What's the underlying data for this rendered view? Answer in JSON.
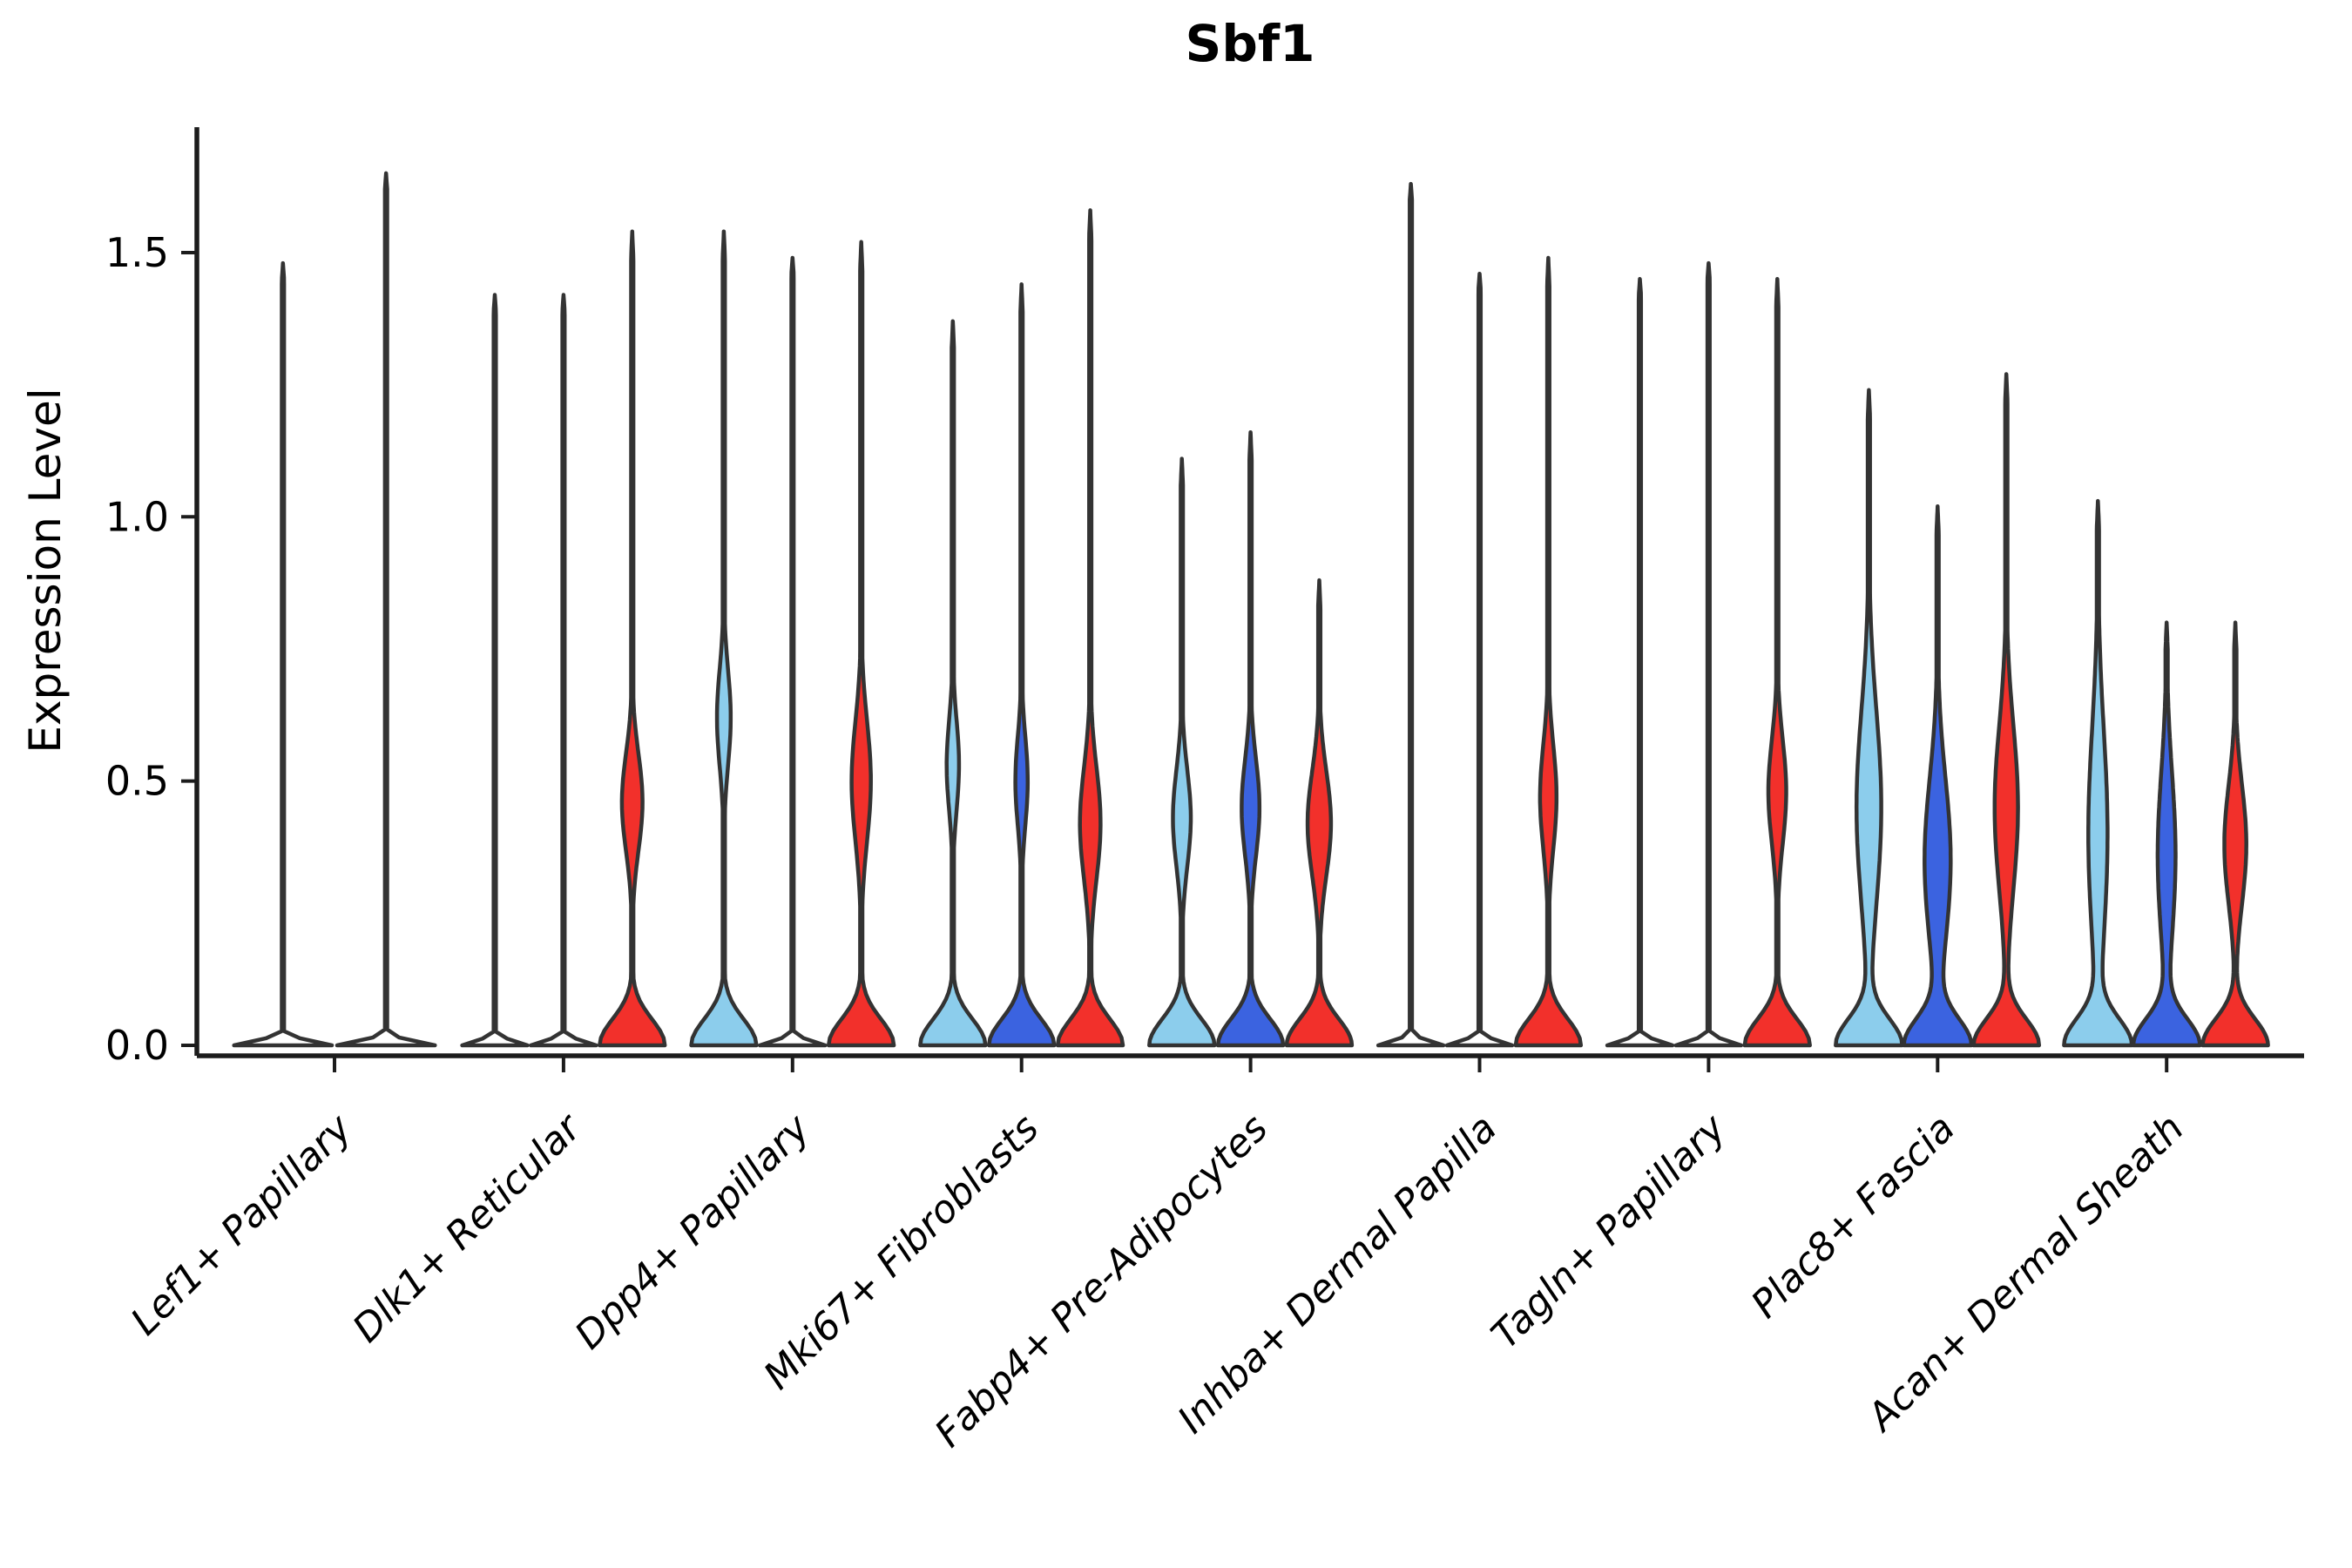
{
  "page": {
    "background": "#ffffff"
  },
  "chart_data": {
    "type": "violin",
    "title": "Sbf1",
    "ylabel": "Expression Level",
    "xlabel": "",
    "ylim": [
      -0.02,
      1.74
    ],
    "yticks": [
      0.0,
      0.5,
      1.0,
      1.5
    ],
    "grid": false,
    "legend": "none",
    "split_colors": {
      "light_blue": "#8CCDEC",
      "dark_blue": "#3B63E0",
      "red": "#F2302B"
    },
    "outline_color": "#333333",
    "axis_color": "#1c1c1c",
    "categories": [
      "Lef1+ Papillary",
      "Dlk1+ Reticular",
      "Dpp4+ Papillary",
      "Mki67+ Fibroblasts",
      "Fabp4+ Pre-Adipocytes",
      "Inhba+ Dermal Papilla",
      "Tagln+ Papillary",
      "Plac8+ Fascia",
      "Acan+ Dermal Sheath"
    ],
    "groups": [
      {
        "name": "Lef1+ Papillary",
        "violins": [
          {
            "split": null,
            "line_only": true,
            "max": 1.48
          },
          {
            "split": null,
            "line_only": true,
            "max": 1.65
          }
        ]
      },
      {
        "name": "Dlk1+ Reticular",
        "violins": [
          {
            "split": "light_blue",
            "line_only": true,
            "max": 1.42
          },
          {
            "split": "dark_blue",
            "line_only": true,
            "max": 1.42
          },
          {
            "split": "red",
            "line_only": false,
            "max": 1.54,
            "bulge": {
              "center": 0.46,
              "sigma": 0.13,
              "width": 0.3
            }
          }
        ]
      },
      {
        "name": "Dpp4+ Papillary",
        "violins": [
          {
            "split": "light_blue",
            "line_only": false,
            "max": 1.54,
            "bulge": {
              "center": 0.62,
              "sigma": 0.13,
              "width": 0.2
            }
          },
          {
            "split": "dark_blue",
            "line_only": true,
            "max": 1.49
          },
          {
            "split": "red",
            "line_only": false,
            "max": 1.52,
            "bulge": {
              "center": 0.5,
              "sigma": 0.16,
              "width": 0.28
            }
          }
        ]
      },
      {
        "name": "Mki67+ Fibroblasts",
        "violins": [
          {
            "split": "light_blue",
            "line_only": false,
            "max": 1.37,
            "bulge": {
              "center": 0.53,
              "sigma": 0.12,
              "width": 0.18
            }
          },
          {
            "split": "dark_blue",
            "line_only": false,
            "max": 1.44,
            "bulge": {
              "center": 0.5,
              "sigma": 0.12,
              "width": 0.18
            }
          },
          {
            "split": "red",
            "line_only": false,
            "max": 1.58,
            "bulge": {
              "center": 0.42,
              "sigma": 0.15,
              "width": 0.3
            }
          }
        ]
      },
      {
        "name": "Fabp4+ Pre-Adipocytes",
        "violins": [
          {
            "split": "light_blue",
            "line_only": false,
            "max": 1.11,
            "bulge": {
              "center": 0.43,
              "sigma": 0.13,
              "width": 0.26
            }
          },
          {
            "split": "dark_blue",
            "line_only": false,
            "max": 1.16,
            "bulge": {
              "center": 0.45,
              "sigma": 0.13,
              "width": 0.26
            }
          },
          {
            "split": "red",
            "line_only": false,
            "max": 0.88,
            "bulge": {
              "center": 0.42,
              "sigma": 0.14,
              "width": 0.34
            }
          }
        ]
      },
      {
        "name": "Inhba+ Dermal Papilla",
        "violins": [
          {
            "split": "light_blue",
            "line_only": true,
            "max": 1.63
          },
          {
            "split": "dark_blue",
            "line_only": true,
            "max": 1.46
          },
          {
            "split": "red",
            "line_only": false,
            "max": 1.49,
            "bulge": {
              "center": 0.47,
              "sigma": 0.14,
              "width": 0.24
            }
          }
        ]
      },
      {
        "name": "Tagln+ Papillary",
        "violins": [
          {
            "split": "light_blue",
            "line_only": true,
            "max": 1.45
          },
          {
            "split": "dark_blue",
            "line_only": true,
            "max": 1.48
          },
          {
            "split": "red",
            "line_only": false,
            "max": 1.45,
            "bulge": {
              "center": 0.48,
              "sigma": 0.14,
              "width": 0.26
            }
          }
        ]
      },
      {
        "name": "Plac8+ Fascia",
        "violins": [
          {
            "split": "light_blue",
            "line_only": false,
            "max": 1.24,
            "bulge": {
              "center": 0.45,
              "sigma": 0.26,
              "width": 0.36
            }
          },
          {
            "split": "dark_blue",
            "line_only": false,
            "max": 1.02,
            "bulge": {
              "center": 0.35,
              "sigma": 0.22,
              "width": 0.38
            }
          },
          {
            "split": "red",
            "line_only": false,
            "max": 1.27,
            "bulge": {
              "center": 0.45,
              "sigma": 0.22,
              "width": 0.34
            }
          }
        ]
      },
      {
        "name": "Acan+ Dermal Sheath",
        "violins": [
          {
            "split": "light_blue",
            "line_only": false,
            "max": 1.03,
            "bulge": {
              "center": 0.4,
              "sigma": 0.28,
              "width": 0.28
            }
          },
          {
            "split": "dark_blue",
            "line_only": false,
            "max": 0.8,
            "bulge": {
              "center": 0.36,
              "sigma": 0.22,
              "width": 0.26
            }
          },
          {
            "split": "red",
            "line_only": false,
            "max": 0.8,
            "bulge": {
              "center": 0.38,
              "sigma": 0.16,
              "width": 0.32
            }
          }
        ]
      }
    ]
  }
}
